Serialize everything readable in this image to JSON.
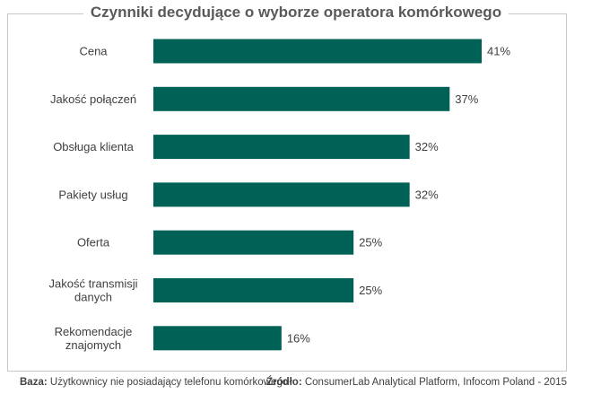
{
  "chart_data": {
    "type": "bar",
    "orientation": "horizontal",
    "title": "Czynniki decydujące o wyborze operatora komórkowego",
    "categories": [
      [
        "Cena"
      ],
      [
        "Jakość połączeń"
      ],
      [
        "Obsługa klienta"
      ],
      [
        "Pakiety usług"
      ],
      [
        "Oferta"
      ],
      [
        "Jakość transmisji",
        "danych"
      ],
      [
        "Rekomendacje",
        "znajomych"
      ]
    ],
    "values": [
      41,
      37,
      32,
      32,
      25,
      25,
      16
    ],
    "value_labels": [
      "41%",
      "37%",
      "32%",
      "32%",
      "25%",
      "25%",
      "16%"
    ],
    "bar_color": "#006156",
    "xlim": [
      0,
      41
    ],
    "grid": false,
    "legend": "none"
  },
  "footer": {
    "base_label": "Baza:",
    "base_text": "Użytkownicy nie posiadający telefonu komórkowego",
    "source_label": "Źródło:",
    "source_text": "ConsumerLab Analytical Platform, Infocom Poland - 2015"
  }
}
